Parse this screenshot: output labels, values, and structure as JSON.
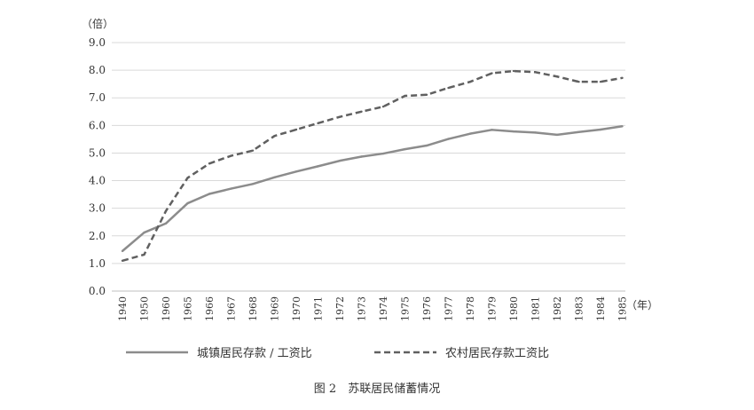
{
  "chart_data": {
    "type": "line",
    "title": "",
    "caption": "图 2　苏联居民储蓄情况",
    "y_unit": "（倍）",
    "x_unit": "（年）",
    "ylim": [
      0,
      9
    ],
    "y_ticks": [
      "0.0",
      "1.0",
      "2.0",
      "3.0",
      "4.0",
      "5.0",
      "6.0",
      "7.0",
      "8.0",
      "9.0"
    ],
    "grid": true,
    "legend_position": "bottom",
    "categories": [
      "1940",
      "1950",
      "1960",
      "1965",
      "1966",
      "1967",
      "1968",
      "1969",
      "1970",
      "1971",
      "1972",
      "1973",
      "1974",
      "1975",
      "1976",
      "1977",
      "1978",
      "1979",
      "1980",
      "1981",
      "1982",
      "1983",
      "1984",
      "1985"
    ],
    "series": [
      {
        "name": "城镇居民存款 / 工资比",
        "style": "solid",
        "color": "#8c8c8c",
        "values": [
          1.45,
          2.12,
          2.45,
          3.18,
          3.52,
          3.71,
          3.88,
          4.12,
          4.33,
          4.52,
          4.72,
          4.87,
          4.98,
          5.14,
          5.27,
          5.51,
          5.7,
          5.84,
          5.78,
          5.74,
          5.66,
          5.76,
          5.85,
          5.97
        ]
      },
      {
        "name": "农村居民存款工资比",
        "style": "dashed",
        "color": "#606060",
        "values": [
          1.1,
          1.32,
          2.9,
          4.1,
          4.62,
          4.9,
          5.09,
          5.62,
          5.85,
          6.08,
          6.31,
          6.5,
          6.68,
          7.07,
          7.11,
          7.36,
          7.58,
          7.89,
          7.97,
          7.93,
          7.77,
          7.58,
          7.58,
          7.72
        ]
      }
    ]
  }
}
